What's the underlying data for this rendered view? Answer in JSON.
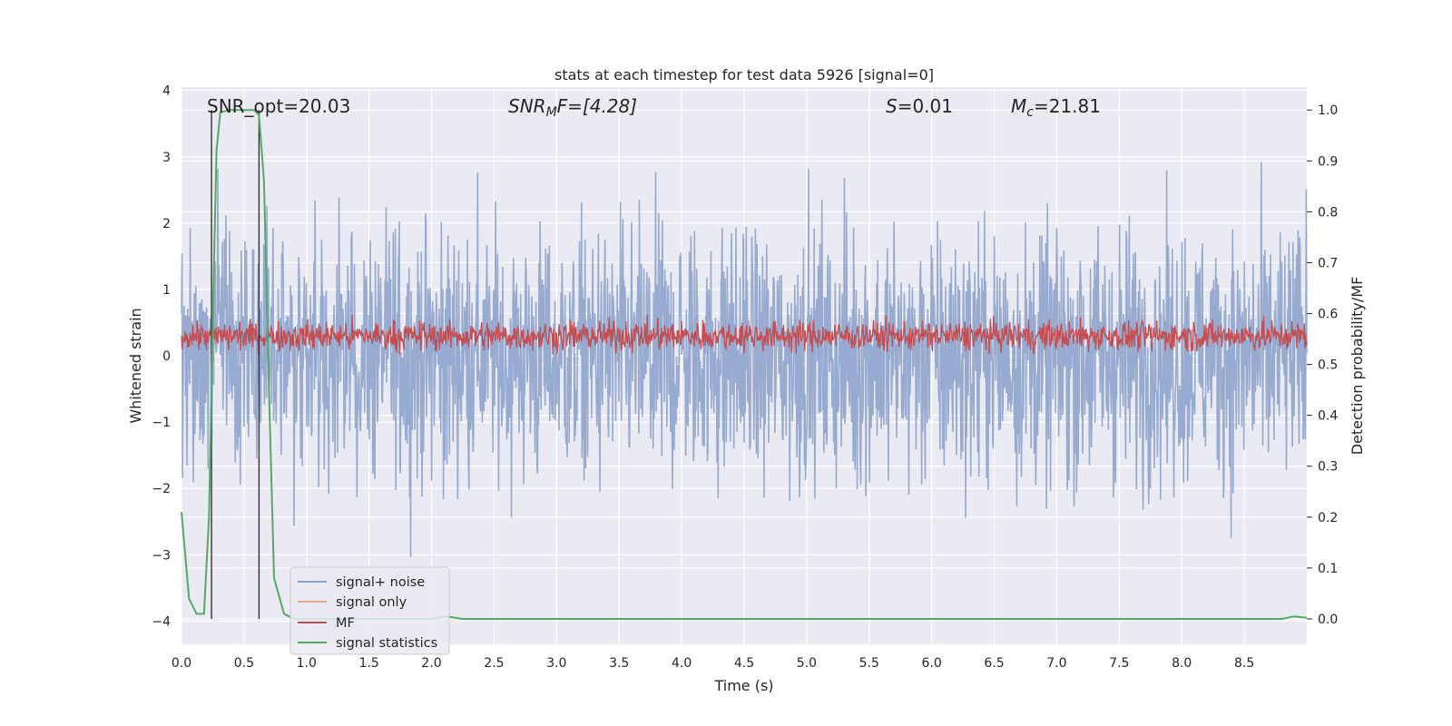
{
  "chart_data": {
    "type": "line",
    "title": "stats at each timestep for test data 5926 [signal=0]",
    "xlabel": "Time (s)",
    "ylabel": "Whitened strain",
    "ylabel_right": "Detection probability/MF",
    "xlim": [
      0.0,
      9.0
    ],
    "ylim": [
      -4.35,
      4.05
    ],
    "ylim_right": [
      -0.05,
      1.045
    ],
    "x_ticks": [
      "0.0",
      "0.5",
      "1.0",
      "1.5",
      "2.0",
      "2.5",
      "3.0",
      "3.5",
      "4.0",
      "4.5",
      "5.0",
      "5.5",
      "6.0",
      "6.5",
      "7.0",
      "7.5",
      "8.0",
      "8.5"
    ],
    "y_ticks": [
      "4",
      "3",
      "2",
      "1",
      "0",
      "−1",
      "−2",
      "−3",
      "−4"
    ],
    "y_right_ticks": [
      "1.0",
      "0.9",
      "0.8",
      "0.7",
      "0.6",
      "0.5",
      "0.4",
      "0.3",
      "0.2",
      "0.1",
      "0.0"
    ],
    "grid": true,
    "legend_position": "lower-left",
    "annotations": {
      "snr_opt": "SNR_opt=20.03",
      "snr_mf_sym": "SNR",
      "snr_mf_sub": "M",
      "snr_mf_rest": "F=[4.28]",
      "s_sym": "S",
      "s_rest": "=0.01",
      "mc_sym": "M",
      "mc_sub": "c",
      "mc_rest": "=21.81"
    },
    "vertical_markers": [
      0.24,
      0.62
    ],
    "series": [
      {
        "name": "signal+ noise",
        "color": "#8ea3cb",
        "kind": "band",
        "envelope_upper": 2.0,
        "envelope_lower": -2.0,
        "peak_max": 3.62,
        "peak_min": -4.0
      },
      {
        "name": "signal only",
        "color": "#e4a98c",
        "values": []
      },
      {
        "name": "MF",
        "color": "#c44e52",
        "kind": "band",
        "base": 0.0,
        "typical_top": 0.5,
        "peak_max": 1.0
      },
      {
        "name": "signal statistics",
        "color": "#55a868",
        "x": [
          0.0,
          0.06,
          0.12,
          0.18,
          0.22,
          0.26,
          0.28,
          0.31,
          0.38,
          0.45,
          0.52,
          0.58,
          0.62,
          0.66,
          0.7,
          0.74,
          0.82,
          0.9,
          1.0,
          1.5,
          2.0,
          2.12,
          2.25,
          3.0,
          5.0,
          7.0,
          8.5,
          8.8,
          8.9,
          9.0
        ],
        "values": [
          0.21,
          0.04,
          0.01,
          0.01,
          0.2,
          0.7,
          0.92,
          0.995,
          1.0,
          1.0,
          1.0,
          1.0,
          0.99,
          0.86,
          0.45,
          0.08,
          0.01,
          0.0,
          0.0,
          0.0,
          0.0,
          0.005,
          0.0,
          0.0,
          0.0,
          0.0,
          0.0,
          0.0,
          0.005,
          0.002
        ]
      }
    ]
  }
}
